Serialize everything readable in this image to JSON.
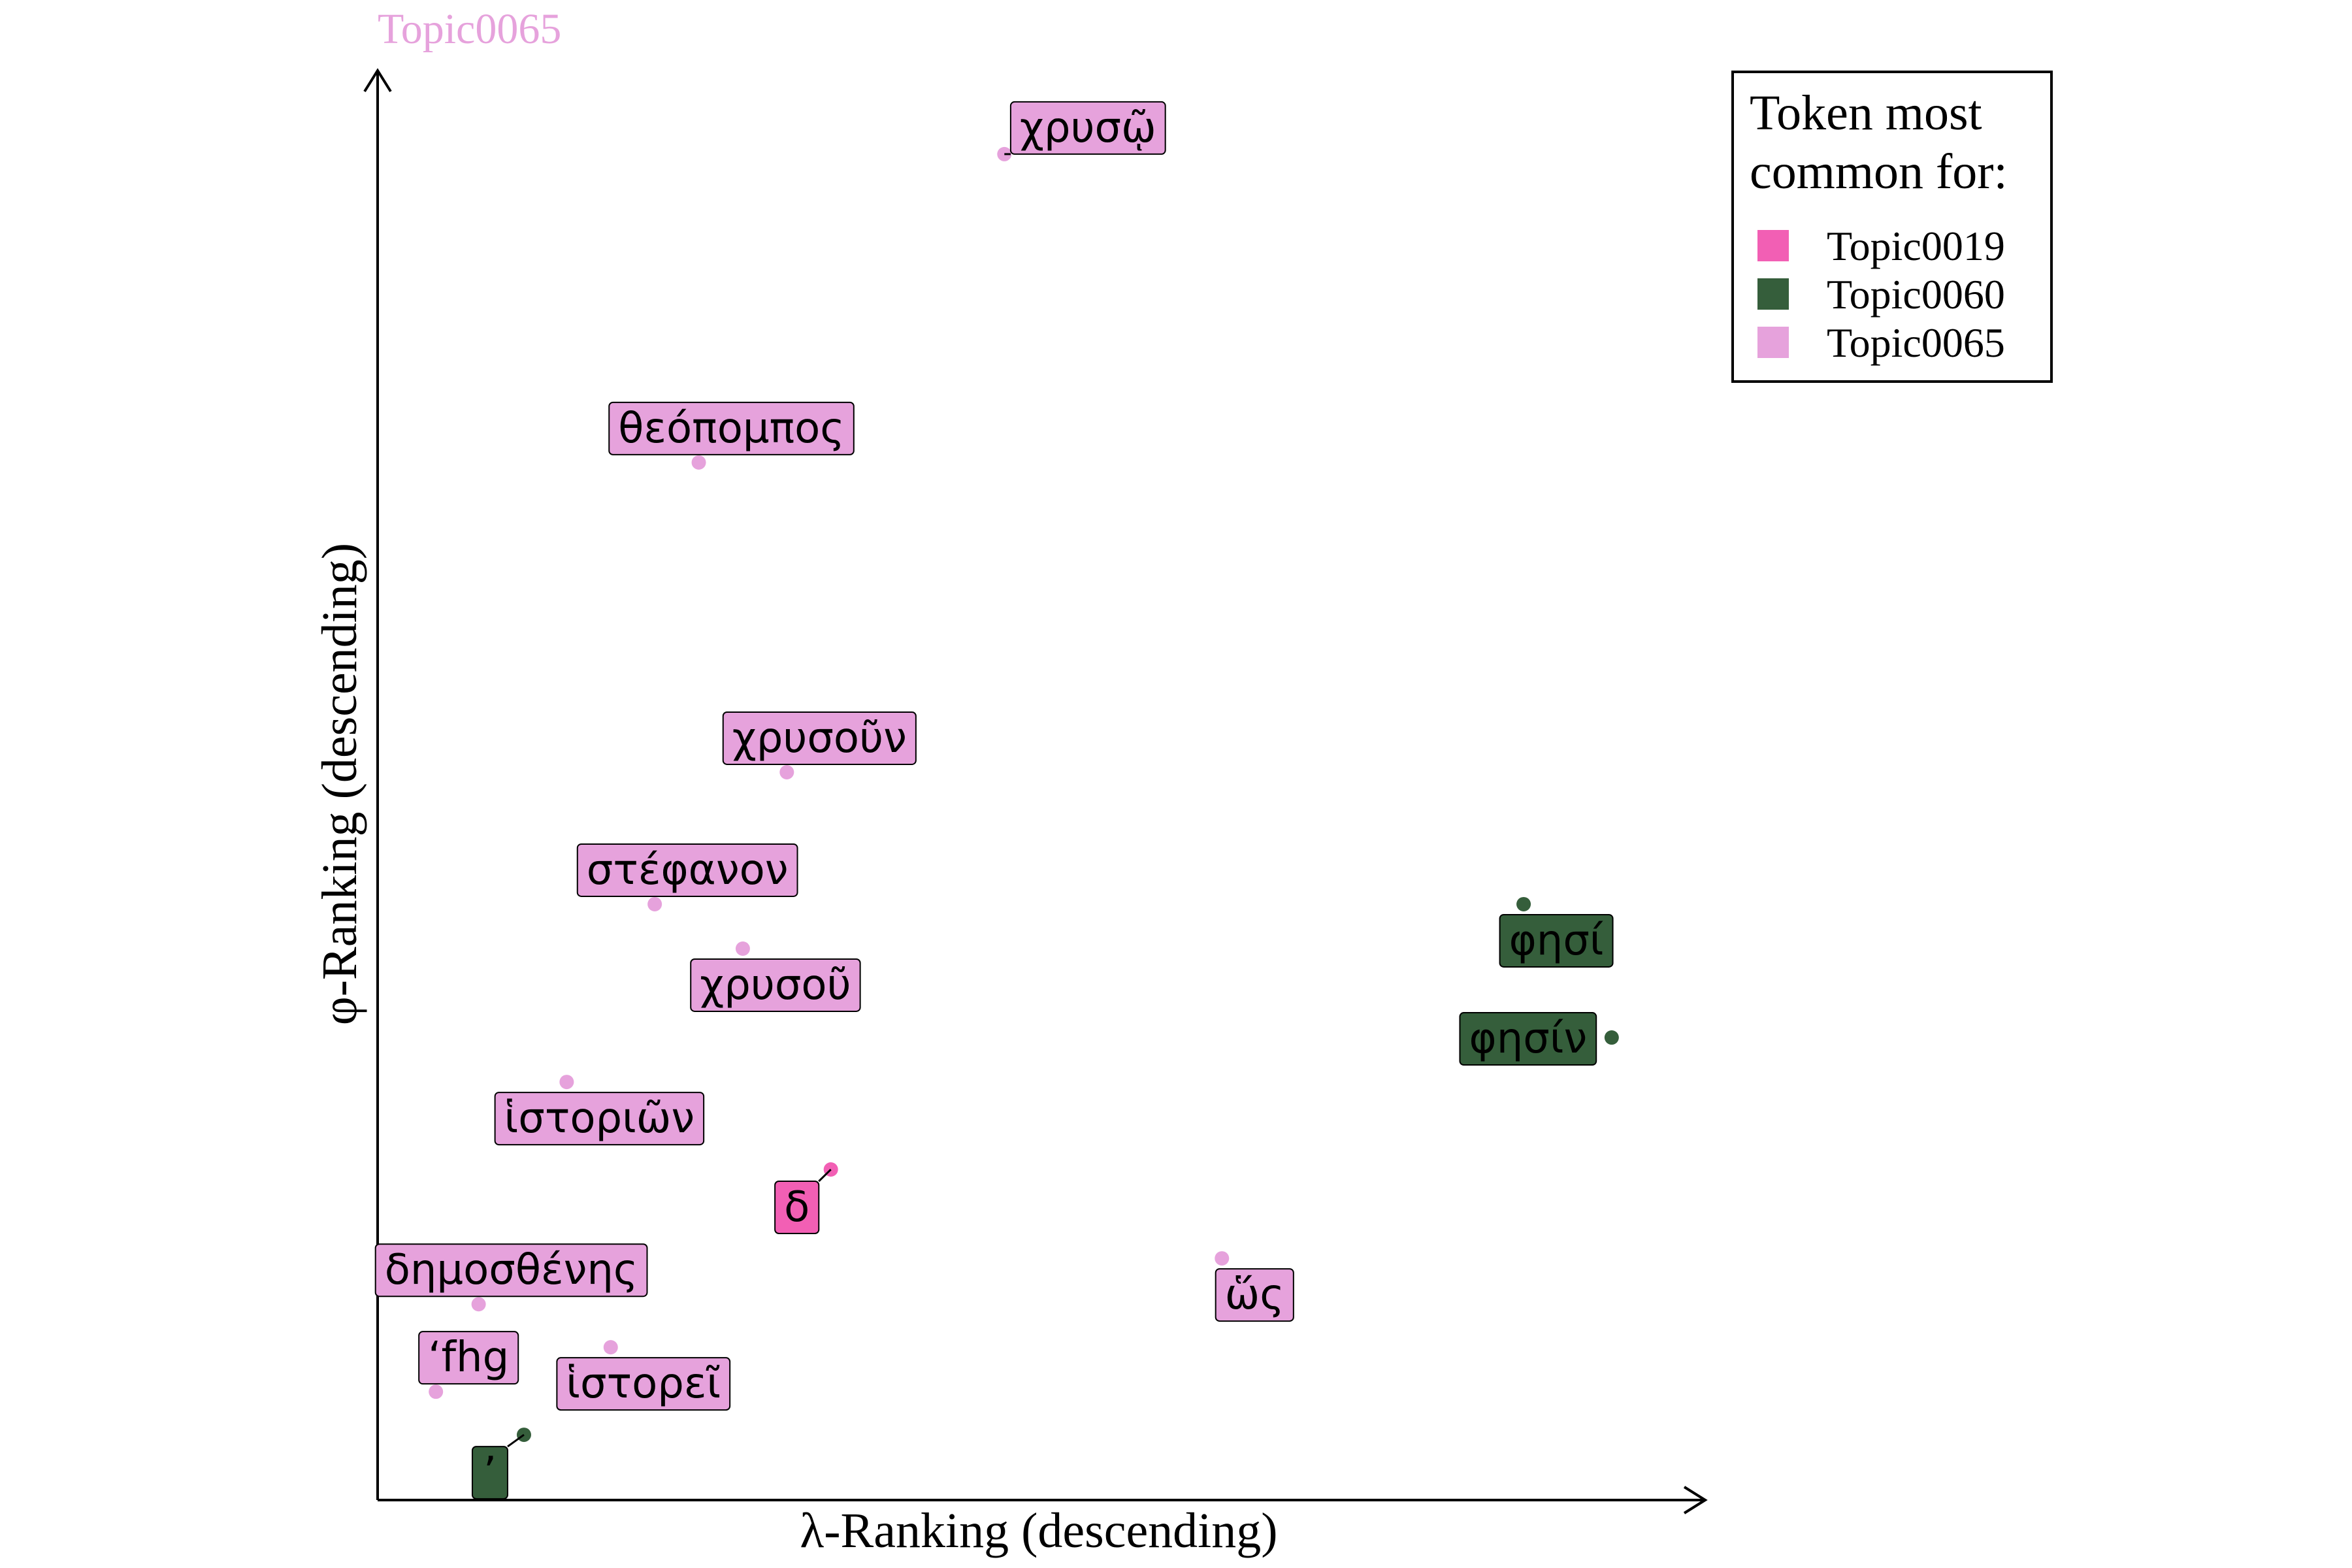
{
  "chart_data": {
    "type": "scatter",
    "title": "Topic0065",
    "xlabel": "λ-Ranking (descending)",
    "ylabel": "φ-Ranking (descending)",
    "xlim": [
      0,
      100
    ],
    "ylim": [
      0,
      100
    ],
    "grid": false,
    "legend": {
      "title_line1": "Token most",
      "title_line2": "common for:",
      "position": "top-right",
      "entries": [
        {
          "name": "Topic0019",
          "color": "#f25fb4"
        },
        {
          "name": "Topic0060",
          "color": "#355e3b"
        },
        {
          "name": "Topic0065",
          "color": "#e6a2dc"
        }
      ]
    },
    "colors": {
      "Topic0019": "#f25fb4",
      "Topic0060": "#355e3b",
      "Topic0065": "#e6a2dc"
    },
    "points": [
      {
        "token": "χρυσῷ",
        "topic": "Topic0065",
        "x": 48.4,
        "y": 96.9,
        "label_pos": "above-right"
      },
      {
        "token": "θεόπομπος",
        "topic": "Topic0065",
        "x": 24.8,
        "y": 74.7,
        "label_pos": "above"
      },
      {
        "token": "χρυσοῦν",
        "topic": "Topic0065",
        "x": 31.6,
        "y": 52.4,
        "label_pos": "above"
      },
      {
        "token": "στέφανον",
        "topic": "Topic0065",
        "x": 21.4,
        "y": 42.9,
        "label_pos": "above"
      },
      {
        "token": "χρυσοῦ",
        "topic": "Topic0065",
        "x": 28.2,
        "y": 39.7,
        "label_pos": "below"
      },
      {
        "token": "ἱστοριῶν",
        "topic": "Topic0065",
        "x": 14.6,
        "y": 30.1,
        "label_pos": "below"
      },
      {
        "token": "δ",
        "topic": "Topic0019",
        "x": 35.0,
        "y": 23.8,
        "label_pos": "below-left"
      },
      {
        "token": "δημοσθένης",
        "topic": "Topic0065",
        "x": 7.8,
        "y": 14.1,
        "label_pos": "above"
      },
      {
        "token": "ὥς",
        "topic": "Topic0065",
        "x": 65.2,
        "y": 17.4,
        "label_pos": "below"
      },
      {
        "token": "‘fhg",
        "topic": "Topic0065",
        "x": 4.5,
        "y": 7.8,
        "label_pos": "above"
      },
      {
        "token": "ἱστορεῖ",
        "topic": "Topic0065",
        "x": 18.0,
        "y": 11.0,
        "label_pos": "below"
      },
      {
        "token": "’",
        "topic": "Topic0060",
        "x": 11.3,
        "y": 4.7,
        "label_pos": "below-left"
      },
      {
        "token": "φησί",
        "topic": "Topic0060",
        "x": 88.5,
        "y": 42.9,
        "label_pos": "below"
      },
      {
        "token": "φησίν",
        "topic": "Topic0060",
        "x": 95.3,
        "y": 33.3,
        "label_pos": "left"
      }
    ]
  }
}
